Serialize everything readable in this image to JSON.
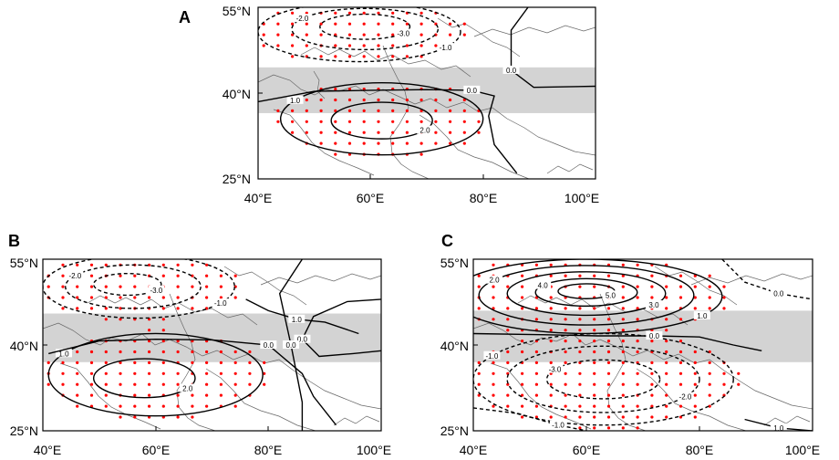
{
  "figure": {
    "panels": [
      {
        "id": "A",
        "label": "A",
        "x_ticks": [
          "40°E",
          "60°E",
          "80°E",
          "100°E"
        ],
        "y_ticks": [
          "55°N",
          "40°N",
          "25°N"
        ],
        "band_lat": [
          36.5,
          44.5
        ],
        "contours": [
          {
            "kind": "ellipse",
            "lon": 58,
            "lat": 50.7,
            "rlon": 18,
            "rlat": 5.2,
            "style": "dashed",
            "label": "-1.0"
          },
          {
            "kind": "ellipse",
            "lon": 59,
            "lat": 51.2,
            "rlon": 13,
            "rlat": 3.6,
            "style": "dashed",
            "label": "-2.0"
          },
          {
            "kind": "ellipse",
            "lon": 59,
            "lat": 51.6,
            "rlon": 8,
            "rlat": 2.2,
            "style": "dashed",
            "label": "-3.0"
          },
          {
            "kind": "ellipse",
            "lon": 62,
            "lat": 35.5,
            "rlon": 18,
            "rlat": 6.3,
            "style": "solid",
            "label": "1.0"
          },
          {
            "kind": "ellipse",
            "lon": 62,
            "lat": 35.2,
            "rlon": 9,
            "rlat": 3.2,
            "style": "solid",
            "label": "2.0"
          },
          {
            "kind": "poly",
            "pts": [
              [
                40,
                38.5
              ],
              [
                50,
                40.3
              ],
              [
                60,
                40.5
              ],
              [
                70,
                40.6
              ],
              [
                78,
                40.5
              ],
              [
                82,
                39.5
              ],
              [
                81,
                36
              ],
              [
                82,
                31
              ],
              [
                86,
                26
              ]
            ],
            "style": "solid",
            "label": "0.0"
          },
          {
            "kind": "poly",
            "pts": [
              [
                88,
                55
              ],
              [
                85,
                51
              ],
              [
                85,
                44
              ],
              [
                89,
                41
              ],
              [
                100,
                41.2
              ]
            ],
            "style": "solid",
            "label": "0.0"
          }
        ]
      },
      {
        "id": "B",
        "label": "B",
        "x_ticks": [
          "40°E",
          "60°E",
          "80°E",
          "100°E"
        ],
        "y_ticks": [
          "55°N",
          "40°N",
          "25°N"
        ],
        "band_lat": [
          37,
          45.5
        ],
        "contours": [
          {
            "kind": "ellipse",
            "lon": 57,
            "lat": 50.2,
            "rlon": 17,
            "rlat": 5.5,
            "style": "dashed",
            "label": "-1.0"
          },
          {
            "kind": "ellipse",
            "lon": 56,
            "lat": 50.2,
            "rlon": 12,
            "rlat": 3.8,
            "style": "dashed",
            "label": "-2.0"
          },
          {
            "kind": "ellipse",
            "lon": 55,
            "lat": 50.6,
            "rlon": 6,
            "rlat": 1.9,
            "style": "dashed",
            "label": "-3.0"
          },
          {
            "kind": "ellipse",
            "lon": 60,
            "lat": 34.8,
            "rlon": 19,
            "rlat": 7.2,
            "style": "solid",
            "label": "1.0"
          },
          {
            "kind": "ellipse",
            "lon": 58,
            "lat": 34.2,
            "rlon": 9,
            "rlat": 3.4,
            "style": "solid",
            "label": "2.0"
          },
          {
            "kind": "poly",
            "pts": [
              [
                41,
                38.5
              ],
              [
                50,
                40.7
              ],
              [
                60,
                41
              ],
              [
                70,
                40.9
              ],
              [
                80,
                40
              ],
              [
                86,
                35
              ],
              [
                88,
                31
              ],
              [
                92,
                26
              ]
            ],
            "style": "solid",
            "label": "0.0"
          },
          {
            "kind": "poly",
            "pts": [
              [
                76,
                48
              ],
              [
                80,
                46
              ],
              [
                85,
                44.5
              ],
              [
                90,
                44
              ],
              [
                96,
                42
              ]
            ],
            "style": "solid",
            "label": "1.0"
          },
          {
            "kind": "poly",
            "pts": [
              [
                100,
                48
              ],
              [
                94,
                47.6
              ],
              [
                88,
                45
              ],
              [
                86,
                41
              ],
              [
                89,
                38
              ],
              [
                95,
                38.5
              ],
              [
                100,
                39
              ]
            ],
            "style": "solid",
            "label": "0.0"
          },
          {
            "kind": "poly",
            "pts": [
              [
                86,
                55
              ],
              [
                82,
                49
              ],
              [
                84,
                40
              ],
              [
                86,
                30
              ],
              [
                86,
                25
              ]
            ],
            "style": "solid",
            "label": "0.0"
          }
        ]
      },
      {
        "id": "C",
        "label": "C",
        "x_ticks": [
          "40°E",
          "60°E",
          "80°E",
          "100°E"
        ],
        "y_ticks": [
          "55°N",
          "40°N",
          "25°N"
        ],
        "band_lat": [
          37,
          46
        ],
        "contours": [
          {
            "kind": "ellipse",
            "lon": 60,
            "lat": 48.5,
            "rlon": 24,
            "rlat": 6.5,
            "style": "solid",
            "label": "1.0"
          },
          {
            "kind": "ellipse",
            "lon": 60,
            "lat": 48.7,
            "rlon": 19,
            "rlat": 5.2,
            "style": "solid",
            "label": "2.0"
          },
          {
            "kind": "ellipse",
            "lon": 60,
            "lat": 49,
            "rlon": 14,
            "rlat": 3.8,
            "style": "solid",
            "label": "3.0"
          },
          {
            "kind": "ellipse",
            "lon": 60,
            "lat": 49.2,
            "rlon": 9,
            "rlat": 2.4,
            "style": "solid",
            "label": "4.0"
          },
          {
            "kind": "ellipse",
            "lon": 60,
            "lat": 49.4,
            "rlon": 5,
            "rlat": 1.3,
            "style": "solid",
            "label": "5.0"
          },
          {
            "kind": "ellipse",
            "lon": 63,
            "lat": 34,
            "rlon": 23,
            "rlat": 8,
            "style": "dashed",
            "label": "-1.0"
          },
          {
            "kind": "ellipse",
            "lon": 63,
            "lat": 34,
            "rlon": 17,
            "rlat": 5.8,
            "style": "dashed",
            "label": "-2.0"
          },
          {
            "kind": "ellipse",
            "lon": 63,
            "lat": 34,
            "rlon": 10,
            "rlat": 3.4,
            "style": "dashed",
            "label": "-3.0"
          },
          {
            "kind": "poly",
            "pts": [
              [
                40,
                42
              ],
              [
                52,
                41.8
              ],
              [
                62,
                41.6
              ],
              [
                72,
                41.6
              ],
              [
                80,
                41.4
              ],
              [
                86,
                40
              ],
              [
                91,
                39
              ]
            ],
            "style": "solid",
            "label": "0.0"
          },
          {
            "kind": "poly",
            "pts": [
              [
                84,
                55
              ],
              [
                88,
                51
              ],
              [
                94,
                49
              ],
              [
                100,
                48
              ]
            ],
            "style": "dashed",
            "label": "0.0"
          },
          {
            "kind": "poly",
            "pts": [
              [
                40,
                29
              ],
              [
                48,
                28
              ],
              [
                55,
                26
              ],
              [
                60,
                25
              ]
            ],
            "style": "dashed",
            "label": "-1.0"
          },
          {
            "kind": "poly",
            "pts": [
              [
                88,
                27
              ],
              [
                94,
                25.5
              ],
              [
                100,
                25
              ]
            ],
            "style": "solid",
            "label": "1.0"
          }
        ]
      }
    ]
  },
  "colors": {
    "band": "#d3d3d3",
    "dots": "#ff0000",
    "contour": "#000000",
    "coast": "#555555"
  }
}
